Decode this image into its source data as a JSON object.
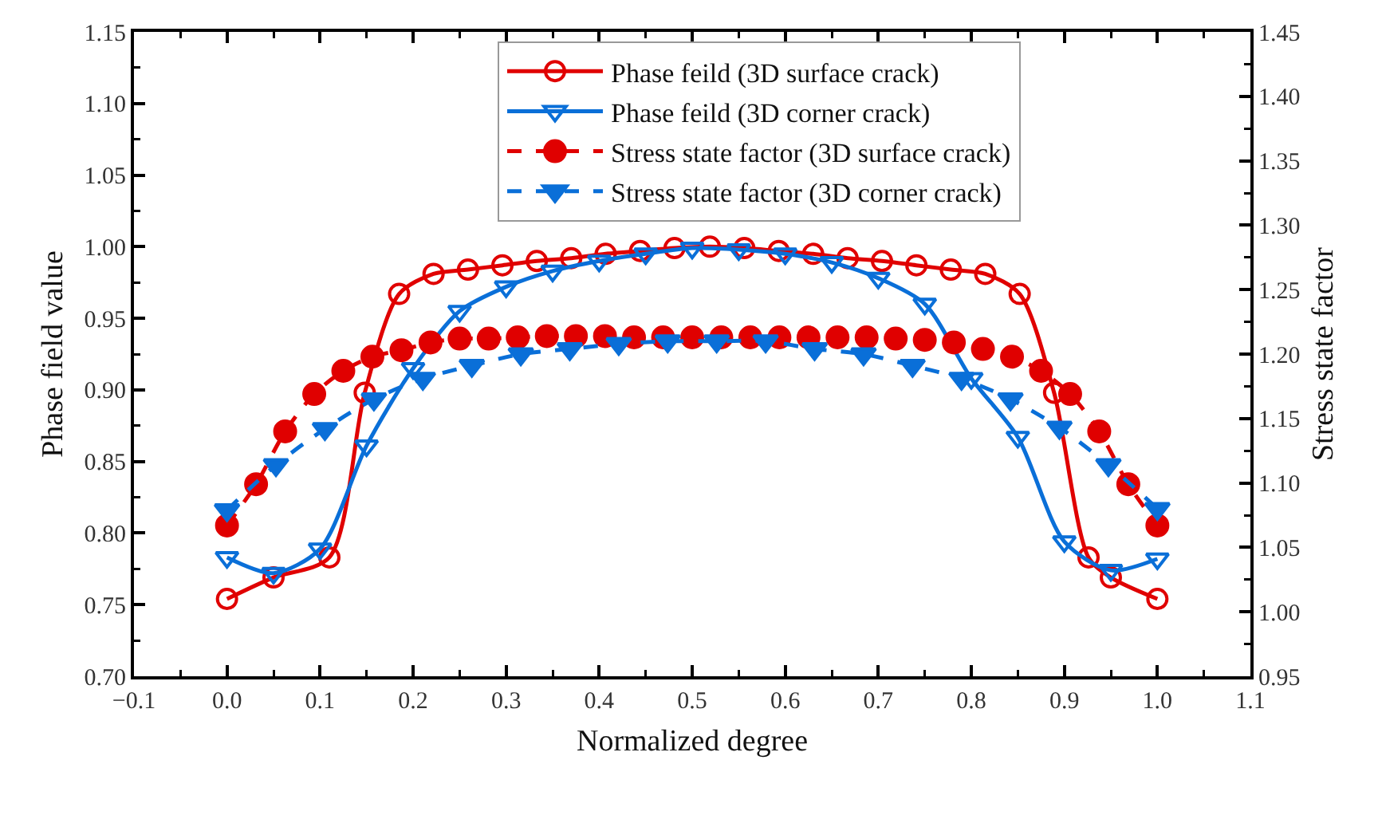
{
  "chart_data": {
    "type": "line",
    "xlabel": "Normalized degree",
    "ylabel": "Phase field value",
    "y2label": "Stress state factor",
    "xlim": [
      -0.1,
      1.1
    ],
    "xticks": [
      {
        "value": -0.1,
        "label": "−0.1"
      },
      {
        "value": 0,
        "label": "0.0"
      },
      0.1,
      0.2,
      0.3,
      0.4,
      0.5,
      0.6,
      0.7,
      0.8,
      0.9,
      {
        "value": 1,
        "label": "1.0"
      },
      1.1
    ],
    "ylim": [
      0.7,
      1.15
    ],
    "yticks": [
      {
        "value": 0.7,
        "label": "0.70"
      },
      0.75,
      {
        "value": 0.8,
        "label": "0.80"
      },
      0.85,
      {
        "value": 0.9,
        "label": "0.90"
      },
      0.95,
      {
        "value": 1,
        "label": "1.00"
      },
      1.05,
      {
        "value": 1.1,
        "label": "1.10"
      },
      1.15
    ],
    "y2lim": [
      0.95,
      1.45
    ],
    "y2ticks": [
      0.95,
      {
        "value": 1,
        "label": "1.00"
      },
      1.05,
      {
        "value": 1.1,
        "label": "1.10"
      },
      1.15,
      {
        "value": 1.2,
        "label": "1.20"
      },
      1.25,
      {
        "value": 1.3,
        "label": "1.30"
      },
      1.35,
      {
        "value": 1.4,
        "label": "1.40"
      },
      1.45
    ],
    "grid": false,
    "legend": "top",
    "series": [
      {
        "name": "Phase feild (3D surface crack)",
        "color": "#e00000",
        "marker": "circle",
        "line_style": "solid",
        "x": [
          0,
          0.05,
          0.11,
          0.148,
          0.185,
          0.222,
          0.259,
          0.296,
          0.333,
          0.37,
          0.407,
          0.444,
          0.481,
          0.519,
          0.556,
          0.593,
          0.63,
          0.667,
          0.704,
          0.741,
          0.778,
          0.815,
          0.852,
          0.889,
          0.926,
          0.95,
          1.0
        ],
        "values": [
          0.754,
          0.769,
          0.783,
          0.898,
          0.967,
          0.981,
          0.984,
          0.987,
          0.99,
          0.992,
          0.995,
          0.997,
          0.999,
          1.0,
          0.999,
          0.997,
          0.995,
          0.992,
          0.99,
          0.987,
          0.984,
          0.981,
          0.967,
          0.898,
          0.783,
          0.769,
          0.754
        ]
      },
      {
        "name": "Phase feild (3D corner crack)",
        "color": "#0a6fd8",
        "marker": "triangle",
        "line_style": "solid",
        "x": [
          0,
          0.05,
          0.1,
          0.15,
          0.2,
          0.25,
          0.3,
          0.35,
          0.4,
          0.45,
          0.5,
          0.55,
          0.6,
          0.65,
          0.7,
          0.75,
          0.8,
          0.85,
          0.9,
          0.95,
          1.0
        ],
        "values": [
          0.783,
          0.772,
          0.789,
          0.861,
          0.915,
          0.955,
          0.972,
          0.983,
          0.99,
          0.995,
          0.999,
          0.998,
          0.995,
          0.989,
          0.978,
          0.96,
          0.908,
          0.867,
          0.794,
          0.774,
          0.782
        ]
      },
      {
        "name": "Stress state factor (3D surface crack)",
        "color": "#e00000",
        "marker": "circle",
        "line_style": "dashed",
        "axis": "y2",
        "x": [
          0,
          0.03125,
          0.0625,
          0.09375,
          0.125,
          0.15625,
          0.1875,
          0.21875,
          0.25,
          0.28125,
          0.3125,
          0.34375,
          0.375,
          0.40625,
          0.4375,
          0.46875,
          0.5,
          0.53125,
          0.5625,
          0.59375,
          0.625,
          0.65625,
          0.6875,
          0.71875,
          0.75,
          0.78125,
          0.8125,
          0.84375,
          0.875,
          0.90625,
          0.9375,
          0.96875,
          1.0
        ],
        "values": [
          1.067,
          1.099,
          1.14,
          1.169,
          1.187,
          1.198,
          1.203,
          1.209,
          1.212,
          1.212,
          1.213,
          1.214,
          1.214,
          1.214,
          1.213,
          1.213,
          1.213,
          1.213,
          1.213,
          1.213,
          1.213,
          1.213,
          1.213,
          1.212,
          1.211,
          1.209,
          1.204,
          1.198,
          1.187,
          1.169,
          1.14,
          1.099,
          1.067
        ]
      },
      {
        "name": "Stress state factor (3D corner crack)",
        "color": "#0a6fd8",
        "marker": "triangle",
        "line_style": "dashed",
        "axis": "y2",
        "x": [
          0,
          0.05263,
          0.10526,
          0.15789,
          0.21053,
          0.26316,
          0.31579,
          0.36842,
          0.42105,
          0.47368,
          0.52632,
          0.57895,
          0.63158,
          0.68421,
          0.73684,
          0.78947,
          0.84211,
          0.89474,
          0.94737,
          1.0
        ],
        "values": [
          1.079,
          1.114,
          1.142,
          1.165,
          1.181,
          1.191,
          1.2,
          1.204,
          1.208,
          1.21,
          1.21,
          1.21,
          1.204,
          1.2,
          1.191,
          1.181,
          1.165,
          1.143,
          1.114,
          1.08
        ]
      }
    ]
  }
}
